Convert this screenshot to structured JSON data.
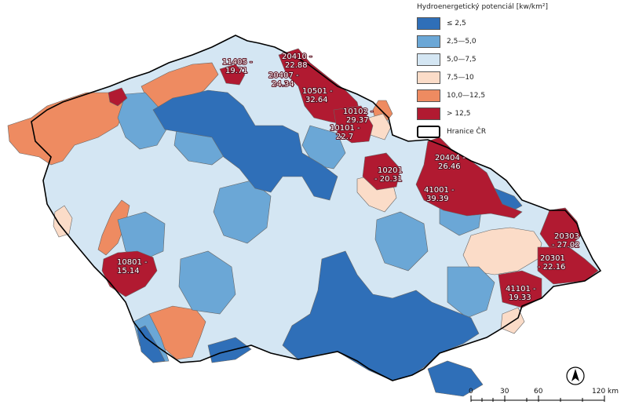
{
  "legend": {
    "title": "Hydroenergetický potenciál [kw/km²]",
    "items": [
      {
        "label": "≤ 2,5",
        "color": "#2f6fb8"
      },
      {
        "label": "2,5—5,0",
        "color": "#6ba7d6"
      },
      {
        "label": "5,0—7,5",
        "color": "#d4e6f3"
      },
      {
        "label": "7,5—10",
        "color": "#fbdcc8"
      },
      {
        "label": "10,0—12,5",
        "color": "#ee8b61"
      },
      {
        "label": "> 12,5",
        "color": "#b11a31"
      }
    ],
    "border_label": "Hranice ČR"
  },
  "region_labels": [
    {
      "id": "11405",
      "text": "11405 -",
      "value": "19.71"
    },
    {
      "id": "20410",
      "text": "20410 -",
      "value": "22.88"
    },
    {
      "id": "20407",
      "text": "20407 -",
      "value": "24.34"
    },
    {
      "id": "10501",
      "text": "10501 -",
      "value": "32.64"
    },
    {
      "id": "10102",
      "text": "10102 -",
      "value": "29.37"
    },
    {
      "id": "10101",
      "text": "10101 -",
      "value": "22.7"
    },
    {
      "id": "10201",
      "text": "10201",
      "value": "- 20.31"
    },
    {
      "id": "20404",
      "text": "20404 -",
      "value": "26.46"
    },
    {
      "id": "41001",
      "text": "41001 -",
      "value": "39.39"
    },
    {
      "id": "20303",
      "text": "20303",
      "value": "- 27.02"
    },
    {
      "id": "20301",
      "text": "20301",
      "value": "- 22.16"
    },
    {
      "id": "10801",
      "text": "10801 -",
      "value": "15.14"
    },
    {
      "id": "41101",
      "text": "41101 -",
      "value": "19.33"
    }
  ],
  "scale": {
    "ticks": [
      "0",
      "30",
      "60",
      "120 km"
    ]
  },
  "north_arrow": "north-arrow-icon"
}
